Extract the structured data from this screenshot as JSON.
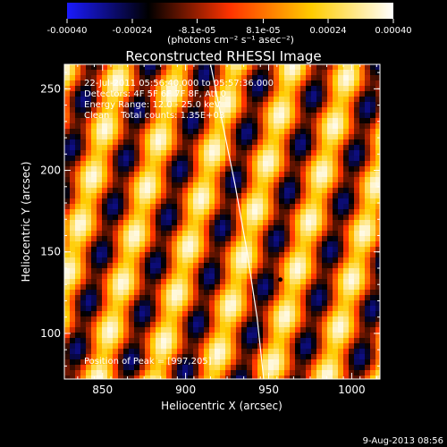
{
  "chart_data": {
    "type": "heatmap",
    "title": "Reconstructed RHESSI Image",
    "colorbar": {
      "tick_labels": [
        "-0.00040",
        "-0.00024",
        "-8.1e-05",
        "8.1e-05",
        "0.00024",
        "0.00040"
      ],
      "tick_values": [
        -0.0004,
        -0.00024,
        -8.1e-05,
        8.1e-05,
        0.00024,
        0.0004
      ],
      "range": [
        -0.0004,
        0.0004
      ],
      "unit_label": "(photons cm⁻² s⁻¹ asec⁻²)",
      "colormap": [
        "#1a1aff",
        "#000000",
        "#ff3300",
        "#ffcc00",
        "#ffffff"
      ]
    },
    "annotations": [
      "22-Jul-2011 05:56:40.000 to 05:57:36.000",
      "Detectors: 4F 5F 6F 7F 8F, Att 0",
      "Energy Range: 12.0 - 25.0 keV",
      "Clean    Total counts: 1.35E+03"
    ],
    "peak_label": "Position of Peak = [997,205]",
    "xlabel": "Heliocentric X (arcsec)",
    "ylabel": "Heliocentric Y (arcsec)",
    "xlim": [
      827,
      1017
    ],
    "ylim": [
      72,
      265
    ],
    "xticks": [
      850,
      900,
      950,
      1000
    ],
    "yticks": [
      100,
      150,
      200,
      250
    ],
    "limb_curve": [
      [
        915,
        265
      ],
      [
        922,
        230
      ],
      [
        930,
        190
      ],
      [
        937,
        150
      ],
      [
        943,
        110
      ],
      [
        947,
        72
      ]
    ],
    "marker": [
      957,
      133
    ],
    "timestamp": "9-Aug-2013 08:56"
  }
}
